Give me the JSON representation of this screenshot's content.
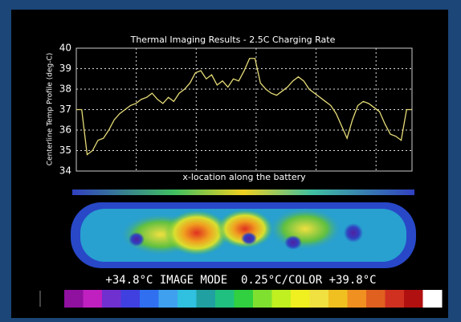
{
  "chart_data": {
    "type": "line",
    "title": "Thermal Imaging Results - 2.5C Charging Rate",
    "y_label": "Centerline Temp Profile (deg-C)",
    "x_label": "x-location along the battery",
    "values": [
      37.0,
      37.0,
      34.8,
      35.0,
      35.5,
      35.6,
      36.0,
      36.5,
      36.8,
      37.0,
      37.2,
      37.3,
      37.5,
      37.6,
      37.8,
      37.5,
      37.3,
      37.6,
      37.4,
      37.8,
      38.0,
      38.3,
      38.8,
      38.9,
      38.5,
      38.7,
      38.2,
      38.4,
      38.1,
      38.5,
      38.4,
      38.9,
      39.5,
      39.5,
      38.3,
      38.0,
      37.8,
      37.7,
      37.9,
      38.1,
      38.4,
      38.6,
      38.4,
      38.0,
      37.8,
      37.6,
      37.4,
      37.2,
      36.8,
      36.2,
      35.6,
      36.5,
      37.2,
      37.4,
      37.3,
      37.1,
      36.9,
      36.3,
      35.8,
      35.7,
      35.5,
      37.0,
      37.0
    ],
    "color": "#e6dc78",
    "ylim": [
      34,
      40
    ],
    "yticks": [
      34,
      35,
      36,
      37,
      38,
      39,
      40
    ],
    "grid": true
  },
  "thermal_image": {
    "caption": "+34.8°C IMAGE MODE  0.25°C/COLOR +39.8°C"
  }
}
